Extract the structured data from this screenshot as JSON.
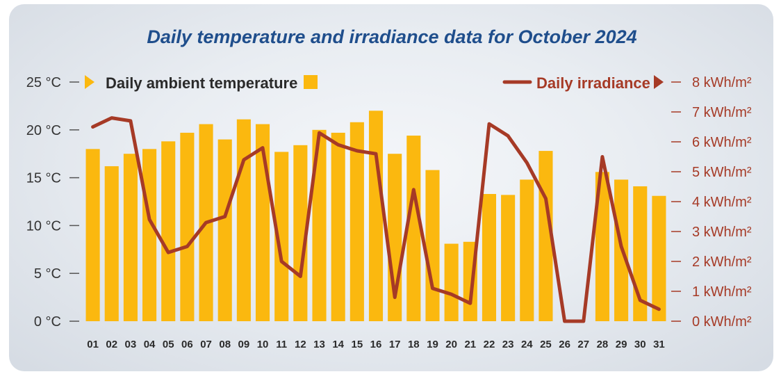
{
  "chart_data": {
    "type": "bar+line",
    "title": "Daily temperature and irradiance data for October 2024",
    "categories": [
      "01",
      "02",
      "03",
      "04",
      "05",
      "06",
      "07",
      "08",
      "09",
      "10",
      "11",
      "12",
      "13",
      "14",
      "15",
      "16",
      "17",
      "18",
      "19",
      "20",
      "21",
      "22",
      "23",
      "24",
      "25",
      "26",
      "27",
      "28",
      "29",
      "30",
      "31"
    ],
    "series": [
      {
        "name": "Daily ambient temperature",
        "type": "bar",
        "axis": "left",
        "unit": "°C",
        "color": "#fbb80f",
        "values": [
          18.0,
          16.2,
          17.5,
          18.0,
          18.8,
          19.7,
          20.6,
          19.0,
          21.1,
          20.6,
          17.7,
          18.4,
          20.0,
          19.7,
          20.8,
          22.0,
          17.5,
          19.4,
          15.8,
          8.1,
          8.3,
          13.3,
          13.2,
          14.8,
          17.8,
          0,
          0,
          15.6,
          14.8,
          14.1,
          13.1
        ]
      },
      {
        "name": "Daily irradiance",
        "type": "line",
        "axis": "right",
        "unit": "kWh/m²",
        "color": "#a63a26",
        "values": [
          6.5,
          6.8,
          6.7,
          3.4,
          2.3,
          2.5,
          3.3,
          3.5,
          5.4,
          5.8,
          2.0,
          1.5,
          6.3,
          5.9,
          5.7,
          5.6,
          0.8,
          4.4,
          1.1,
          0.9,
          0.6,
          6.6,
          6.2,
          5.3,
          4.1,
          0,
          0,
          5.5,
          2.5,
          0.7,
          0.4
        ]
      }
    ],
    "y_left": {
      "range": [
        0,
        25
      ],
      "ticks": [
        0,
        5,
        10,
        15,
        20,
        25
      ],
      "labels": [
        "0 °C",
        "5 °C",
        "10 °C",
        "15 °C",
        "20 °C",
        "25 °C"
      ]
    },
    "y_right": {
      "range": [
        0,
        8
      ],
      "ticks": [
        0,
        1,
        2,
        3,
        4,
        5,
        6,
        7,
        8
      ],
      "labels": [
        "0 kWh/m²",
        "1 kWh/m²",
        "2 kWh/m²",
        "3 kWh/m²",
        "4 kWh/m²",
        "5 kWh/m²",
        "6 kWh/m²",
        "7 kWh/m²",
        "8 kWh/m²"
      ]
    },
    "legend": {
      "temp_label": "Daily ambient temperature",
      "irr_label": "Daily irradiance",
      "placement": "top"
    },
    "colors": {
      "bar": "#fbb80f",
      "line": "#a63a26",
      "title": "#1f4e8c"
    }
  }
}
